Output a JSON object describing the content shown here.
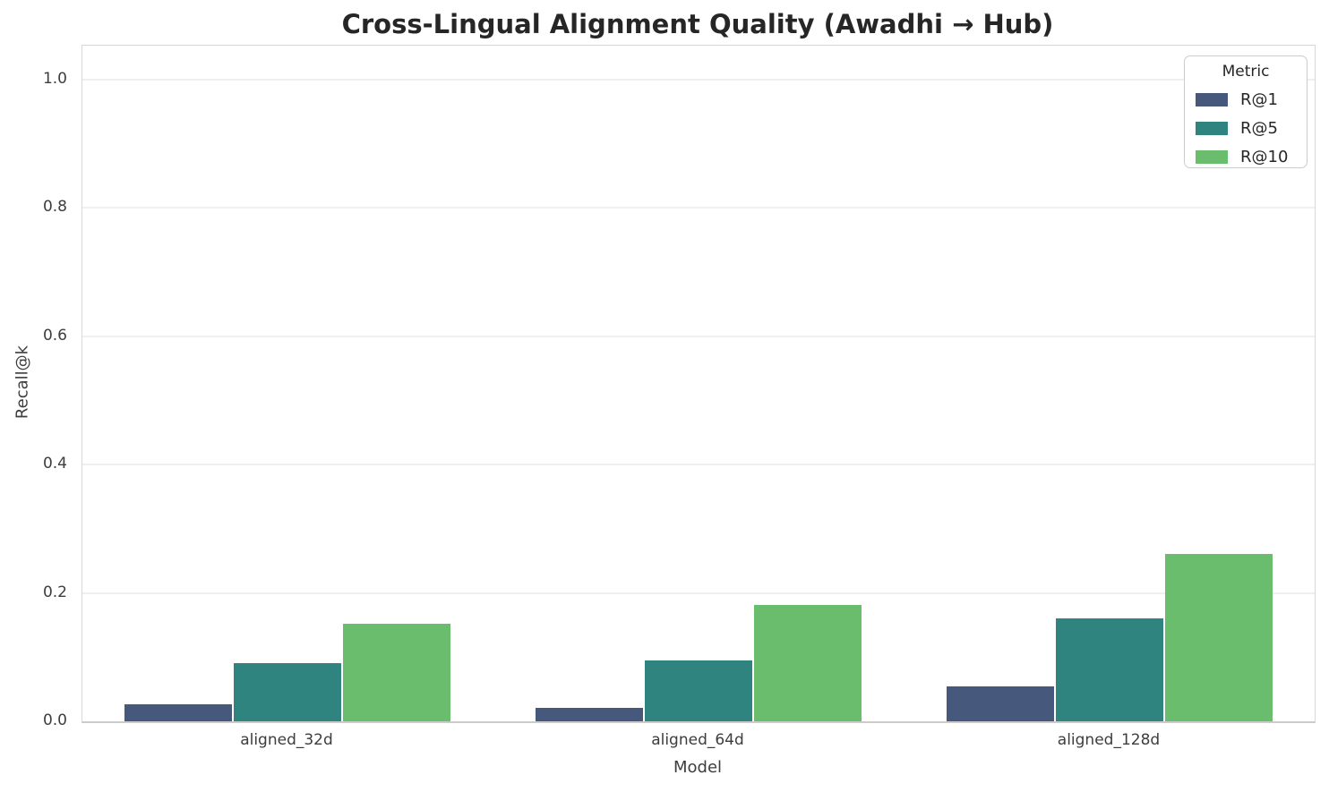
{
  "chart_data": {
    "type": "bar",
    "title": "Cross-Lingual Alignment Quality (Awadhi → Hub)",
    "xlabel": "Model",
    "ylabel": "Recall@k",
    "categories": [
      "aligned_32d",
      "aligned_64d",
      "aligned_128d"
    ],
    "series": [
      {
        "name": "R@1",
        "color": "#46597d",
        "values": [
          0.027,
          0.021,
          0.054
        ]
      },
      {
        "name": "R@5",
        "color": "#2f8480",
        "values": [
          0.09,
          0.095,
          0.16
        ]
      },
      {
        "name": "R@10",
        "color": "#6abd6d",
        "values": [
          0.152,
          0.182,
          0.261
        ]
      }
    ],
    "yticks": [
      "0.0",
      "0.2",
      "0.4",
      "0.6",
      "0.8",
      "1.0"
    ],
    "ylim": [
      0,
      1.053
    ],
    "grid": "horizontal-only",
    "legend": {
      "title": "Metric",
      "position": "upper-right"
    },
    "colors": {
      "grid": "#efefef",
      "spine": "#d8d8d8",
      "text": "#3d3d3d",
      "title_text": "#262626"
    }
  }
}
